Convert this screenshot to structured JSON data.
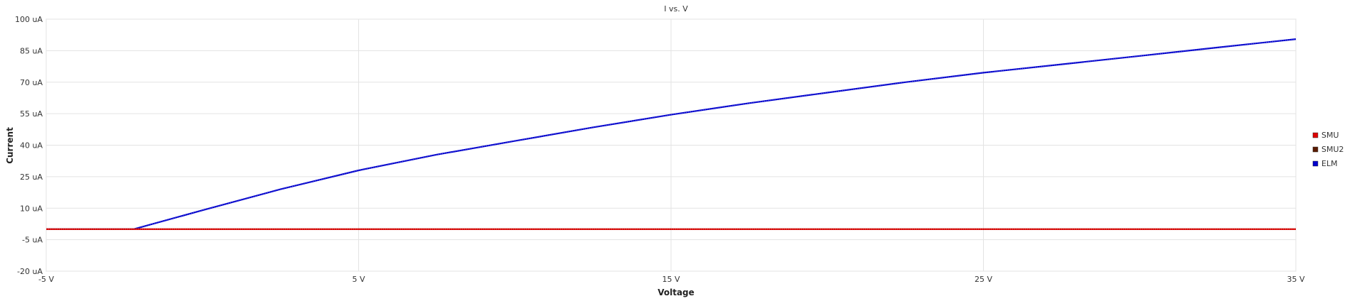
{
  "chart_data": {
    "type": "line",
    "title": "I vs. V",
    "xlabel": "Voltage",
    "ylabel": "Current",
    "xlim": [
      -5,
      35
    ],
    "ylim": [
      -20,
      100
    ],
    "x_ticks": [
      -5,
      5,
      15,
      25,
      35
    ],
    "x_tick_labels": [
      "-5 V",
      "5 V",
      "15 V",
      "25 V",
      "35 V"
    ],
    "y_ticks": [
      100,
      85,
      70,
      55,
      40,
      25,
      10,
      -5,
      -20
    ],
    "y_tick_labels": [
      "100 uA",
      "85 uA",
      "70 uA",
      "55 uA",
      "40 uA",
      "25 uA",
      "10 uA",
      "-5 uA",
      "-20 uA"
    ],
    "grid": true,
    "legend_position": "right",
    "series": [
      {
        "name": "SMU",
        "color": "#dd0000",
        "x": [
          -5,
          35
        ],
        "y": [
          0,
          0
        ]
      },
      {
        "name": "SMU2",
        "color": "#5a1a00",
        "x": [
          -5,
          35
        ],
        "y": [
          0,
          0
        ]
      },
      {
        "name": "ELM",
        "color": "#0000cc",
        "x": [
          -5,
          -2.2,
          0,
          2.5,
          5,
          7.5,
          10,
          12.5,
          15,
          17.5,
          20,
          22.5,
          25,
          27.5,
          30,
          32.5,
          35
        ],
        "y": [
          0,
          0,
          9,
          19,
          28,
          35.5,
          42,
          48.5,
          54.5,
          60,
          65,
          70,
          74.5,
          78.5,
          82.5,
          86.5,
          90.5
        ]
      }
    ]
  }
}
